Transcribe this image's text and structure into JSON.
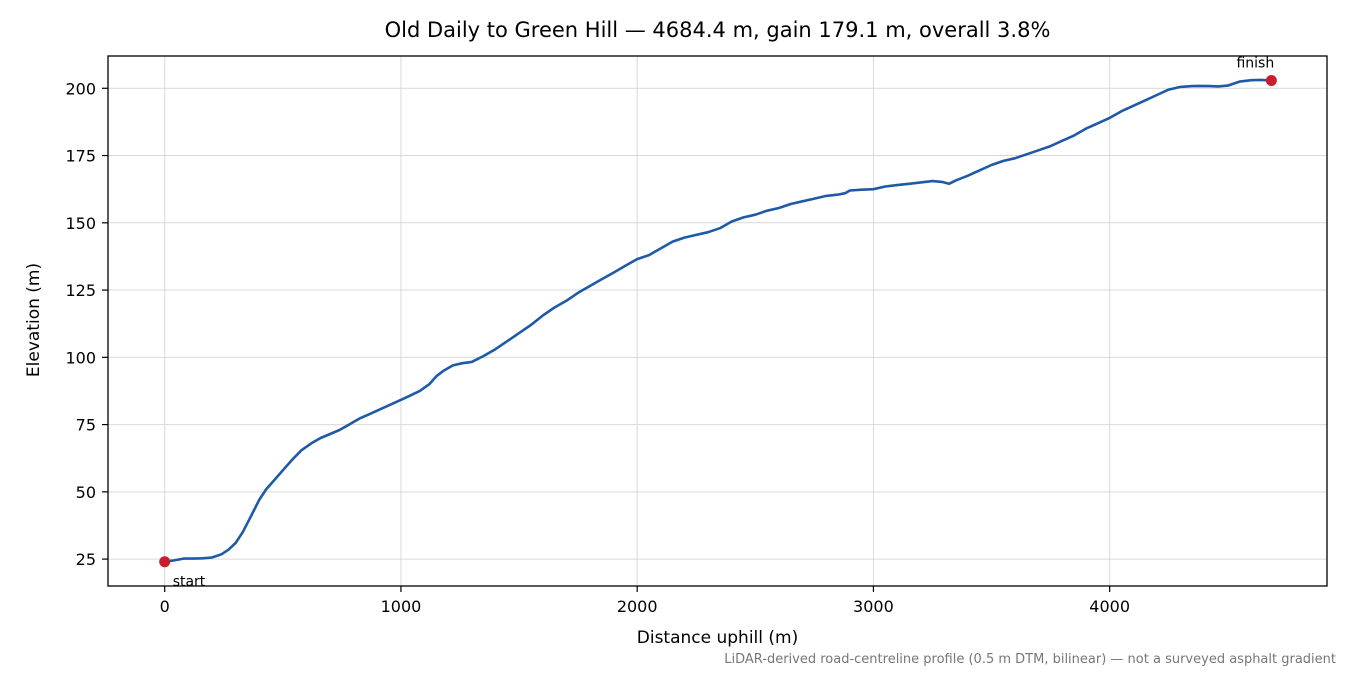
{
  "chart_data": {
    "type": "line",
    "title": "Old Daily to Green Hill — 4684.4 m, gain 179.1 m, overall 3.8%",
    "xlabel": "Distance uphill (m)",
    "ylabel": "Elevation (m)",
    "xlim": [
      -240,
      4920
    ],
    "ylim": [
      15,
      212
    ],
    "xticks": [
      0,
      1000,
      2000,
      3000,
      4000
    ],
    "yticks": [
      25,
      50,
      75,
      100,
      125,
      150,
      175,
      200
    ],
    "grid": true,
    "line_color": "#1f5aa6",
    "marker_color": "#c81e2e",
    "series": [
      {
        "x": [
          0,
          40,
          80,
          120,
          160,
          200,
          240,
          270,
          300,
          330,
          360,
          400,
          430,
          460,
          500,
          540,
          580,
          620,
          660,
          700,
          740,
          780,
          800,
          830,
          870,
          920,
          970,
          1020,
          1080,
          1120,
          1150,
          1180,
          1220,
          1260,
          1300,
          1350,
          1400,
          1450,
          1500,
          1550,
          1600,
          1650,
          1700,
          1750,
          1800,
          1850,
          1900,
          1950,
          2000,
          2050,
          2100,
          2150,
          2200,
          2250,
          2300,
          2350,
          2400,
          2450,
          2500,
          2550,
          2600,
          2650,
          2700,
          2750,
          2800,
          2850,
          2880,
          2900,
          2950,
          3000,
          3050,
          3100,
          3150,
          3200,
          3250,
          3290,
          3320,
          3350,
          3400,
          3450,
          3500,
          3550,
          3600,
          3650,
          3700,
          3750,
          3800,
          3850,
          3900,
          3950,
          4000,
          4050,
          4100,
          4150,
          4200,
          4250,
          4300,
          4350,
          4380,
          4420,
          4460,
          4500,
          4550,
          4600,
          4640,
          4684.4
        ],
        "y": [
          24,
          24.5,
          25.2,
          25.2,
          25.3,
          25.6,
          26.8,
          28.5,
          31,
          35,
          40,
          47,
          51,
          54,
          58,
          62,
          65.5,
          68,
          70,
          71.5,
          73,
          75,
          76,
          77.5,
          79,
          81,
          83,
          85,
          87.5,
          90,
          93,
          95,
          97,
          97.8,
          98.3,
          100.5,
          103,
          106,
          109,
          112,
          115.5,
          118.5,
          121,
          124,
          126.5,
          129,
          131.5,
          134,
          136.5,
          138,
          140.5,
          143,
          144.5,
          145.5,
          146.5,
          148,
          150.5,
          152,
          153,
          154.5,
          155.5,
          157,
          158,
          159,
          160,
          160.5,
          161,
          162,
          162.3,
          162.5,
          163.5,
          164,
          164.5,
          165,
          165.5,
          165.2,
          164.5,
          165.8,
          167.5,
          169.5,
          171.5,
          173,
          174,
          175.5,
          177,
          178.5,
          180.5,
          182.5,
          185,
          187,
          189,
          191.5,
          193.5,
          195.5,
          197.5,
          199.5,
          200.5,
          200.8,
          200.9,
          200.8,
          200.7,
          201,
          202.5,
          203,
          203.1,
          202.9
        ]
      }
    ],
    "annotations": [
      {
        "text": "start",
        "x": 0,
        "y": 24
      },
      {
        "text": "finish",
        "x": 4684.4,
        "y": 202.9
      }
    ],
    "footnote": "LiDAR-derived road-centreline profile (0.5 m DTM, bilinear) — not a surveyed asphalt gradient"
  }
}
